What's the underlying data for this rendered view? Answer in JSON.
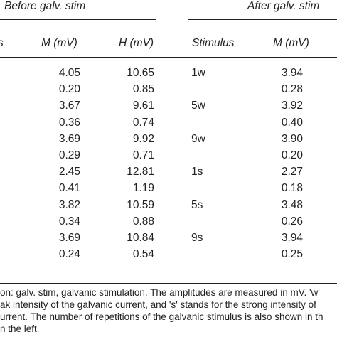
{
  "headers": {
    "before_group": "Before galv. stim",
    "after_group": "After galv. stim",
    "first_col_fragment": "s",
    "columns": [
      "M (mV)",
      "H (mV)",
      "Stimulus",
      "M (mV)"
    ]
  },
  "rows": [
    {
      "m_before": "4.05",
      "h_before": "10.65",
      "stimulus": "1w",
      "m_after": "3.94"
    },
    {
      "m_before": "0.20",
      "h_before": "0.85",
      "stimulus": "",
      "m_after": "0.28"
    },
    {
      "m_before": "3.67",
      "h_before": "9.61",
      "stimulus": "5w",
      "m_after": "3.92"
    },
    {
      "m_before": "0.36",
      "h_before": "0.74",
      "stimulus": "",
      "m_after": "0.40"
    },
    {
      "m_before": "3.69",
      "h_before": "9.92",
      "stimulus": "9w",
      "m_after": "3.90"
    },
    {
      "m_before": "0.29",
      "h_before": "0.71",
      "stimulus": "",
      "m_after": "0.20"
    },
    {
      "m_before": "2.45",
      "h_before": "12.81",
      "stimulus": "1s",
      "m_after": "2.27"
    },
    {
      "m_before": "0.41",
      "h_before": "1.19",
      "stimulus": "",
      "m_after": "0.18"
    },
    {
      "m_before": "3.82",
      "h_before": "10.59",
      "stimulus": "5s",
      "m_after": "3.48"
    },
    {
      "m_before": "0.34",
      "h_before": "0.88",
      "stimulus": "",
      "m_after": "0.26"
    },
    {
      "m_before": "3.69",
      "h_before": "10.84",
      "stimulus": "9s",
      "m_after": "3.94"
    },
    {
      "m_before": "0.24",
      "h_before": "0.54",
      "stimulus": "",
      "m_after": "0.25"
    }
  ],
  "footnote": {
    "line1": "on: galv. stim, galvanic stimulation. The amplitudes are measured in mV. 'w'",
    "line2": "ak intensity of the galvanic current, and 's' stands for the strong intensity of",
    "line3": "urrent. The number of repetitions of the galvanic stimulus is also shown in th",
    "line4": "n the left."
  }
}
